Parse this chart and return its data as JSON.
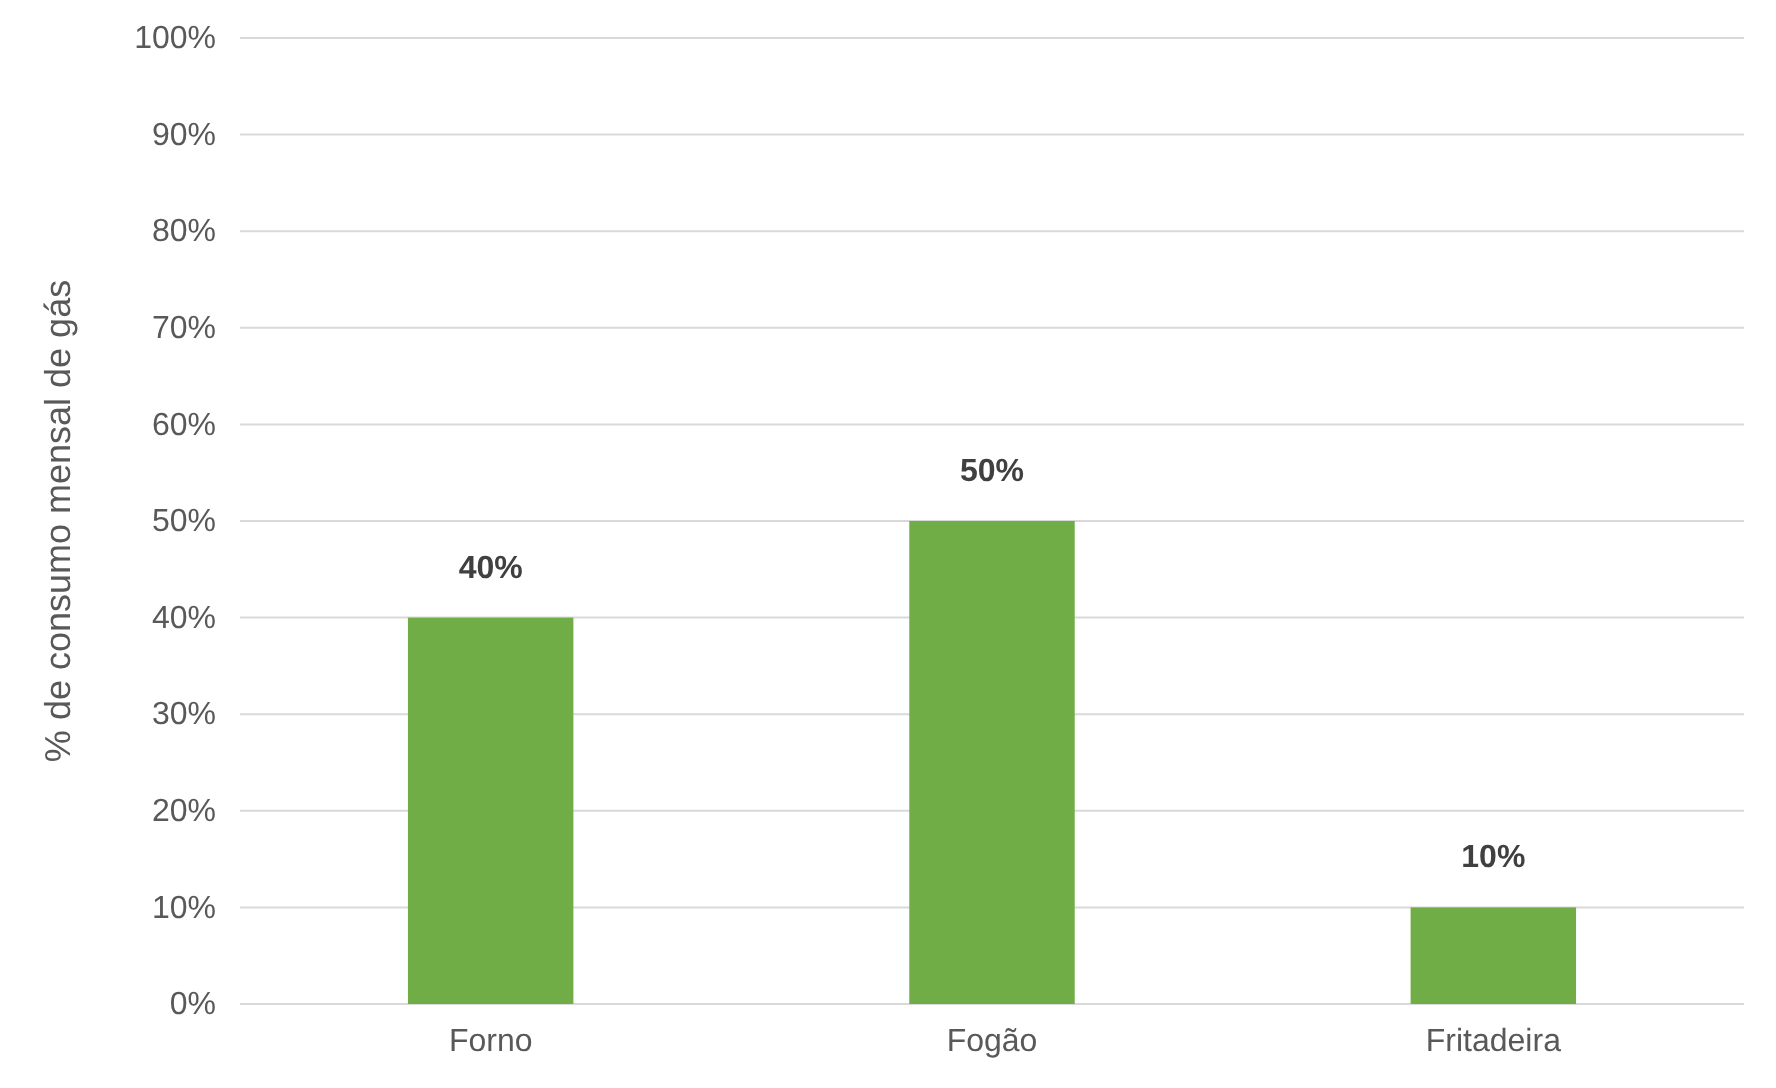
{
  "chart_data": {
    "type": "bar",
    "ylabel": "% de consumo mensal de gás",
    "categories": [
      "Forno",
      "Fogão",
      "Fritadeira"
    ],
    "values": [
      40,
      50,
      10
    ],
    "color": "#70ad47",
    "value_labels": [
      "40%",
      "50%",
      "10%"
    ],
    "ylim": [
      0,
      100
    ],
    "yticks": [
      {
        "value": 0,
        "label": "0%"
      },
      {
        "value": 10,
        "label": "10%"
      },
      {
        "value": 20,
        "label": "20%"
      },
      {
        "value": 30,
        "label": "30%"
      },
      {
        "value": 40,
        "label": "40%"
      },
      {
        "value": 50,
        "label": "50%"
      },
      {
        "value": 60,
        "label": "60%"
      },
      {
        "value": 70,
        "label": "70%"
      },
      {
        "value": 80,
        "label": "80%"
      },
      {
        "value": 90,
        "label": "90%"
      },
      {
        "value": 100,
        "label": "100%"
      }
    ],
    "grid": "y"
  }
}
